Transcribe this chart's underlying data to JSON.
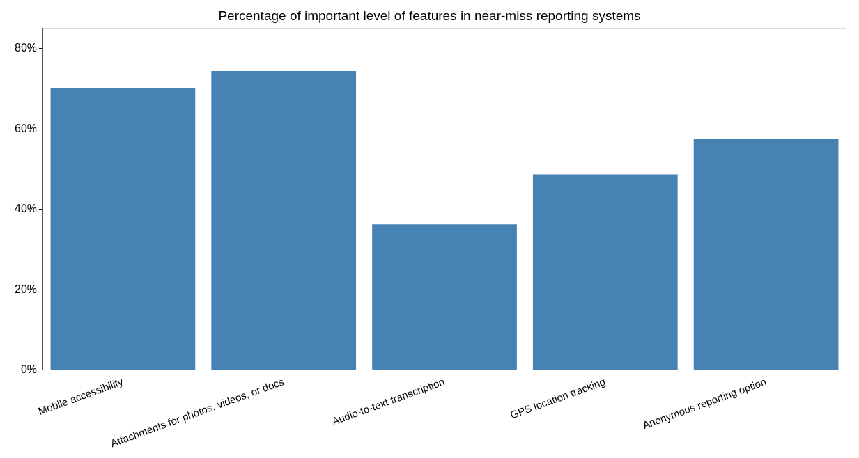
{
  "chart_data": {
    "type": "bar",
    "title": "Percentage of important level of features in near-miss reporting systems",
    "categories": [
      "Mobile accessibility",
      "Attachments for photos, videos, or docs",
      "Audio-to-text transcription",
      "GPS location tracking",
      "Anonymous reporting option"
    ],
    "values": [
      70.2,
      74.4,
      36.3,
      48.7,
      57.6
    ],
    "color": "#4682b4",
    "ylim": [
      0,
      85
    ],
    "yticks": [
      {
        "value": 0,
        "label": "0%"
      },
      {
        "value": 20,
        "label": "20%"
      },
      {
        "value": 40,
        "label": "40%"
      },
      {
        "value": 60,
        "label": "60%"
      },
      {
        "value": 80,
        "label": "80%"
      }
    ],
    "grid": false
  }
}
